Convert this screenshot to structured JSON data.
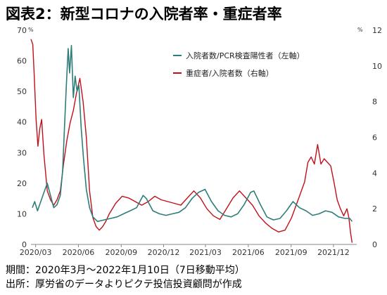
{
  "title": "図表2：新型コロナの入院者率・重症者率",
  "notes": [
    "期間：2020年3月～2022年1月10日（7日移動平均）",
    "出所：厚労省のデータよりピクテ投信投資顧問が作成"
  ],
  "colors": {
    "admission": "#2e7d7a",
    "severe": "#c0101a",
    "axis": "#888888"
  },
  "chart_data": {
    "type": "line",
    "left_axis": {
      "unit": "%",
      "range": [
        0,
        70
      ],
      "ticks": [
        0,
        10,
        20,
        30,
        40,
        50,
        60,
        70
      ]
    },
    "right_axis": {
      "unit": "%",
      "range": [
        0,
        12
      ],
      "ticks": [
        0,
        2,
        4,
        6,
        8,
        10,
        12
      ]
    },
    "x_axis": {
      "range": [
        "2020-02-20",
        "2022-01-20"
      ],
      "tick_labels": [
        "2020/03",
        "2020/06",
        "2020/09",
        "2020/12",
        "2021/03",
        "2021/06",
        "2021/09",
        "2021/12"
      ],
      "tick_dates": [
        "2020-03-01",
        "2020-06-01",
        "2020-09-01",
        "2020-12-01",
        "2021-03-01",
        "2021-06-01",
        "2021-09-01",
        "2021-12-01"
      ]
    },
    "legend_position": "top-center",
    "series": [
      {
        "name": "入院者数/PCR検査陽性者（左軸）",
        "axis": "left",
        "points": [
          [
            "2020-02-23",
            12
          ],
          [
            "2020-02-28",
            14
          ],
          [
            "2020-03-05",
            11
          ],
          [
            "2020-03-12",
            14
          ],
          [
            "2020-03-19",
            17
          ],
          [
            "2020-03-26",
            20
          ],
          [
            "2020-04-02",
            16
          ],
          [
            "2020-04-09",
            12
          ],
          [
            "2020-04-16",
            13
          ],
          [
            "2020-04-23",
            16
          ],
          [
            "2020-04-28",
            24
          ],
          [
            "2020-05-02",
            38
          ],
          [
            "2020-05-06",
            52
          ],
          [
            "2020-05-10",
            64
          ],
          [
            "2020-05-13",
            56
          ],
          [
            "2020-05-17",
            65
          ],
          [
            "2020-05-21",
            48
          ],
          [
            "2020-05-25",
            55
          ],
          [
            "2020-05-29",
            50
          ],
          [
            "2020-06-02",
            52
          ],
          [
            "2020-06-07",
            38
          ],
          [
            "2020-06-12",
            28
          ],
          [
            "2020-06-18",
            18
          ],
          [
            "2020-06-25",
            12
          ],
          [
            "2020-07-02",
            9
          ],
          [
            "2020-07-12",
            7.5
          ],
          [
            "2020-07-26",
            8
          ],
          [
            "2020-08-09",
            8.5
          ],
          [
            "2020-08-23",
            9
          ],
          [
            "2020-09-06",
            10
          ],
          [
            "2020-09-20",
            11
          ],
          [
            "2020-10-04",
            12
          ],
          [
            "2020-10-18",
            16
          ],
          [
            "2020-10-25",
            15
          ],
          [
            "2020-11-08",
            11
          ],
          [
            "2020-11-22",
            10
          ],
          [
            "2020-12-06",
            9.5
          ],
          [
            "2020-12-20",
            10
          ],
          [
            "2021-01-03",
            10.5
          ],
          [
            "2021-01-17",
            12
          ],
          [
            "2021-01-31",
            15
          ],
          [
            "2021-02-14",
            17
          ],
          [
            "2021-02-28",
            18
          ],
          [
            "2021-03-14",
            14
          ],
          [
            "2021-03-28",
            11
          ],
          [
            "2021-04-11",
            9.5
          ],
          [
            "2021-04-25",
            9
          ],
          [
            "2021-05-09",
            10
          ],
          [
            "2021-05-23",
            13
          ],
          [
            "2021-06-06",
            17
          ],
          [
            "2021-06-13",
            17.5
          ],
          [
            "2021-06-27",
            13
          ],
          [
            "2021-07-11",
            9
          ],
          [
            "2021-07-25",
            8
          ],
          [
            "2021-08-08",
            8.5
          ],
          [
            "2021-08-22",
            11
          ],
          [
            "2021-09-05",
            14
          ],
          [
            "2021-09-19",
            12
          ],
          [
            "2021-10-03",
            11
          ],
          [
            "2021-10-17",
            9.5
          ],
          [
            "2021-10-31",
            10
          ],
          [
            "2021-11-14",
            11
          ],
          [
            "2021-11-28",
            10.5
          ],
          [
            "2021-12-12",
            9
          ],
          [
            "2021-12-26",
            8.5
          ],
          [
            "2022-01-05",
            8.5
          ],
          [
            "2022-01-10",
            7.5
          ]
        ]
      },
      {
        "name": "重症者/入院者数（右軸）",
        "axis": "right",
        "points": [
          [
            "2020-02-20",
            11.5
          ],
          [
            "2020-02-24",
            11.2
          ],
          [
            "2020-02-27",
            9.5
          ],
          [
            "2020-03-02",
            7
          ],
          [
            "2020-03-06",
            5.5
          ],
          [
            "2020-03-10",
            6.5
          ],
          [
            "2020-03-14",
            7
          ],
          [
            "2020-03-19",
            5
          ],
          [
            "2020-03-26",
            3
          ],
          [
            "2020-04-02",
            2.5
          ],
          [
            "2020-04-09",
            2.2
          ],
          [
            "2020-04-16",
            2.5
          ],
          [
            "2020-04-23",
            3
          ],
          [
            "2020-04-30",
            4.5
          ],
          [
            "2020-05-07",
            5.8
          ],
          [
            "2020-05-14",
            6.8
          ],
          [
            "2020-05-21",
            7.5
          ],
          [
            "2020-05-28",
            8.5
          ],
          [
            "2020-06-04",
            9.3
          ],
          [
            "2020-06-11",
            8
          ],
          [
            "2020-06-18",
            6
          ],
          [
            "2020-06-25",
            3
          ],
          [
            "2020-07-02",
            1.5
          ],
          [
            "2020-07-09",
            1
          ],
          [
            "2020-07-16",
            0.8
          ],
          [
            "2020-07-23",
            1
          ],
          [
            "2020-07-30",
            1.3
          ],
          [
            "2020-08-06",
            1.7
          ],
          [
            "2020-08-20",
            2.3
          ],
          [
            "2020-09-03",
            2.7
          ],
          [
            "2020-09-17",
            2.6
          ],
          [
            "2020-10-01",
            2.4
          ],
          [
            "2020-10-15",
            2.2
          ],
          [
            "2020-10-29",
            2.4
          ],
          [
            "2020-11-12",
            2.7
          ],
          [
            "2020-11-26",
            2.5
          ],
          [
            "2020-12-10",
            2.4
          ],
          [
            "2020-12-24",
            2.3
          ],
          [
            "2021-01-07",
            2.2
          ],
          [
            "2021-01-21",
            2.6
          ],
          [
            "2021-02-04",
            3
          ],
          [
            "2021-02-18",
            2.6
          ],
          [
            "2021-03-04",
            2
          ],
          [
            "2021-03-18",
            1.6
          ],
          [
            "2021-04-01",
            1.4
          ],
          [
            "2021-04-15",
            2
          ],
          [
            "2021-04-29",
            2.6
          ],
          [
            "2021-05-13",
            3
          ],
          [
            "2021-05-27",
            2.6
          ],
          [
            "2021-06-10",
            2.2
          ],
          [
            "2021-06-24",
            1.6
          ],
          [
            "2021-07-08",
            1.2
          ],
          [
            "2021-07-22",
            0.9
          ],
          [
            "2021-08-05",
            0.7
          ],
          [
            "2021-08-19",
            0.8
          ],
          [
            "2021-09-02",
            1.5
          ],
          [
            "2021-09-16",
            2.5
          ],
          [
            "2021-09-30",
            3.5
          ],
          [
            "2021-10-07",
            4.6
          ],
          [
            "2021-10-14",
            4.9
          ],
          [
            "2021-10-21",
            4.5
          ],
          [
            "2021-10-28",
            5.6
          ],
          [
            "2021-11-04",
            4.5
          ],
          [
            "2021-11-11",
            4.8
          ],
          [
            "2021-11-18",
            4.6
          ],
          [
            "2021-11-25",
            4.4
          ],
          [
            "2021-12-02",
            3.5
          ],
          [
            "2021-12-09",
            2.5
          ],
          [
            "2021-12-16",
            2
          ],
          [
            "2021-12-23",
            1.6
          ],
          [
            "2021-12-30",
            2
          ],
          [
            "2022-01-03",
            1.5
          ],
          [
            "2022-01-07",
            0.6
          ],
          [
            "2022-01-10",
            0.1
          ]
        ]
      }
    ]
  }
}
